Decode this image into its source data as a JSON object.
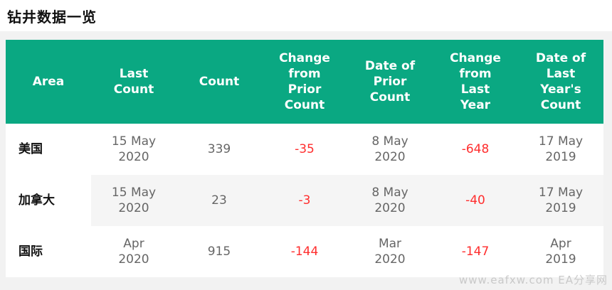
{
  "page": {
    "title": "钻井数据一览"
  },
  "table": {
    "headers": [
      "Area",
      "Last\nCount",
      "Count",
      "Change\nfrom\nPrior\nCount",
      "Date of\nPrior\nCount",
      "Change\nfrom\nLast\nYear",
      "Date of\nLast\nYear's\nCount"
    ],
    "rows": [
      [
        "美国",
        "15 May\n2020",
        "339",
        "-35",
        "8 May\n2020",
        "-648",
        "17 May\n2019"
      ],
      [
        "加拿大",
        "15 May\n2020",
        "23",
        "-3",
        "8 May\n2020",
        "-40",
        "17 May\n2019"
      ],
      [
        "国际",
        "Apr\n2020",
        "915",
        "-144",
        "Mar\n2020",
        "-147",
        "Apr\n2019"
      ]
    ]
  },
  "watermark": "www.eafxw.com  EA分享网",
  "colors": {
    "header_bg": "#0aa882",
    "negative": "#ff2d2d"
  }
}
